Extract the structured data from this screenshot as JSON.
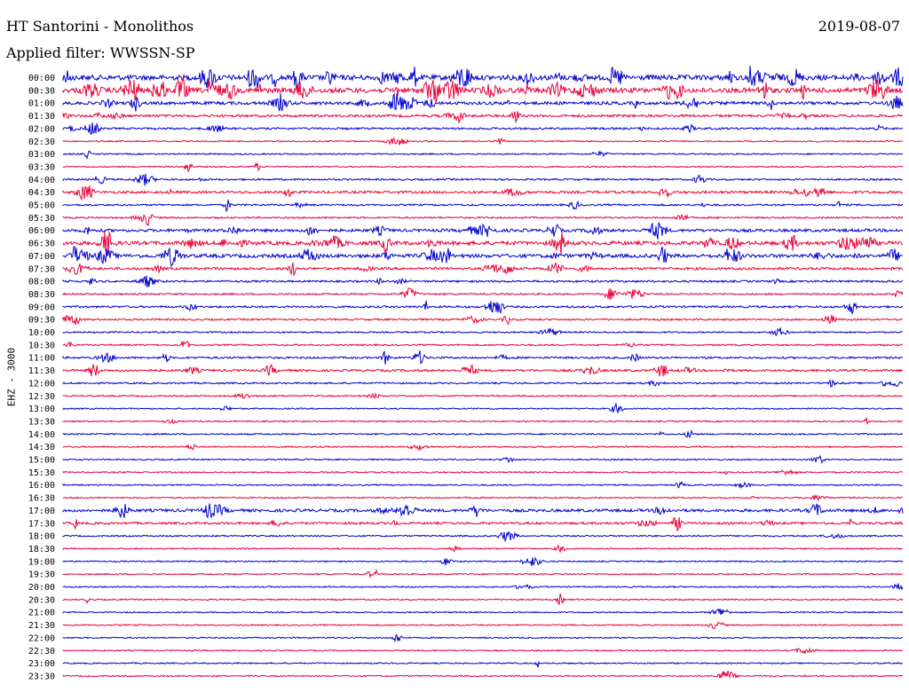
{
  "header": {
    "station": "HT Santorini - Monolithos",
    "date": "2019-08-07",
    "filter": "Applied filter: WWSSN-SP"
  },
  "channel_label": "EHZ - 3000",
  "colors": {
    "trace_a": "#0000cc",
    "trace_b": "#e8003a",
    "background": "#ffffff",
    "text": "#000000"
  },
  "chart_data": {
    "type": "line",
    "subtype": "helicorder",
    "title": "HT Santorini - Monolithos",
    "ylabel": "EHZ - 3000",
    "rows": [
      "00:00",
      "00:30",
      "01:00",
      "01:30",
      "02:00",
      "02:30",
      "03:00",
      "03:30",
      "04:00",
      "04:30",
      "05:00",
      "05:30",
      "06:00",
      "06:30",
      "07:00",
      "07:30",
      "08:00",
      "08:30",
      "09:00",
      "09:30",
      "10:00",
      "10:30",
      "11:00",
      "11:30",
      "12:00",
      "12:30",
      "13:00",
      "13:30",
      "14:00",
      "14:30",
      "15:00",
      "15:30",
      "16:00",
      "16:30",
      "17:00",
      "17:30",
      "18:00",
      "18:30",
      "19:00",
      "19:30",
      "20:00",
      "20:30",
      "21:00",
      "21:30",
      "22:00",
      "22:30",
      "23:00",
      "23:30"
    ],
    "row_colors": [
      "trace_a",
      "trace_b"
    ],
    "row_minutes": 30,
    "activity_level": [
      0.9,
      0.85,
      0.45,
      0.3,
      0.2,
      0.05,
      0.05,
      0.05,
      0.15,
      0.3,
      0.15,
      0.12,
      0.4,
      0.6,
      0.55,
      0.3,
      0.2,
      0.12,
      0.2,
      0.15,
      0.08,
      0.1,
      0.2,
      0.25,
      0.12,
      0.08,
      0.05,
      0.05,
      0.08,
      0.06,
      0.05,
      0.07,
      0.05,
      0.05,
      0.4,
      0.25,
      0.08,
      0.06,
      0.05,
      0.05,
      0.05,
      0.05,
      0.04,
      0.04,
      0.04,
      0.04,
      0.04,
      0.03
    ],
    "grid": false,
    "legend": "none"
  }
}
